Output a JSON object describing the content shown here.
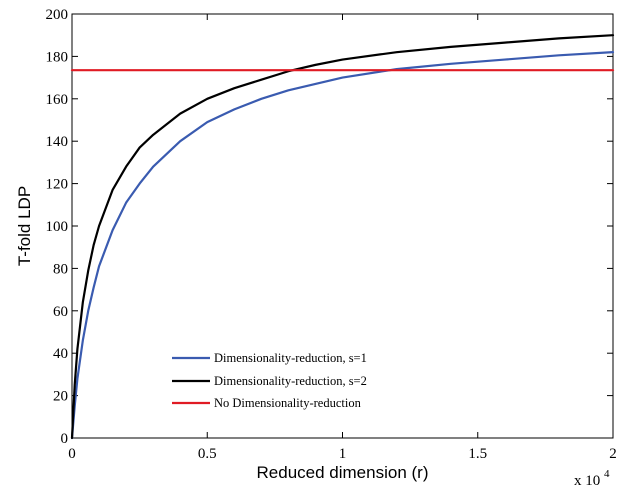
{
  "chart_data": {
    "type": "line",
    "title": "",
    "xlabel": "Reduced dimension (r)",
    "ylabel": "T-fold LDP",
    "x_multiplier_base": "x 10",
    "x_multiplier_exp": "4",
    "xlim": [
      0,
      2
    ],
    "ylim": [
      0,
      200
    ],
    "xticks": [
      "0",
      "0.5",
      "1",
      "1.5",
      "2"
    ],
    "yticks": [
      "0",
      "20",
      "40",
      "60",
      "80",
      "100",
      "120",
      "140",
      "160",
      "180",
      "200"
    ],
    "grid": false,
    "legend_position": "lower-center",
    "series": [
      {
        "name": "Dimensionality-reduction, s=1",
        "color": "#3a5bb0",
        "x": [
          0,
          0.01,
          0.02,
          0.04,
          0.06,
          0.08,
          0.1,
          0.15,
          0.2,
          0.25,
          0.3,
          0.4,
          0.5,
          0.6,
          0.7,
          0.8,
          0.9,
          1.0,
          1.2,
          1.4,
          1.6,
          1.8,
          2.0
        ],
        "y": [
          0,
          15,
          28,
          46,
          60,
          71,
          81,
          98,
          111,
          120,
          128,
          140,
          149,
          155,
          160,
          164,
          167,
          170,
          174,
          176.5,
          178.5,
          180.5,
          182
        ]
      },
      {
        "name": "Dimensionality-reduction, s=2",
        "color": "#000000",
        "x": [
          0,
          0.01,
          0.02,
          0.04,
          0.06,
          0.08,
          0.1,
          0.15,
          0.2,
          0.25,
          0.3,
          0.4,
          0.5,
          0.6,
          0.7,
          0.8,
          0.9,
          1.0,
          1.2,
          1.4,
          1.6,
          1.8,
          2.0
        ],
        "y": [
          0,
          25,
          42,
          64,
          79,
          91,
          100,
          117,
          128,
          137,
          143,
          153,
          160,
          165,
          169,
          173,
          176,
          178.5,
          182,
          184.5,
          186.5,
          188.5,
          190
        ]
      },
      {
        "name": "No Dimensionality-reduction",
        "color": "#e01b24",
        "x": [
          0,
          2
        ],
        "y": [
          173.5,
          173.5
        ]
      }
    ]
  }
}
